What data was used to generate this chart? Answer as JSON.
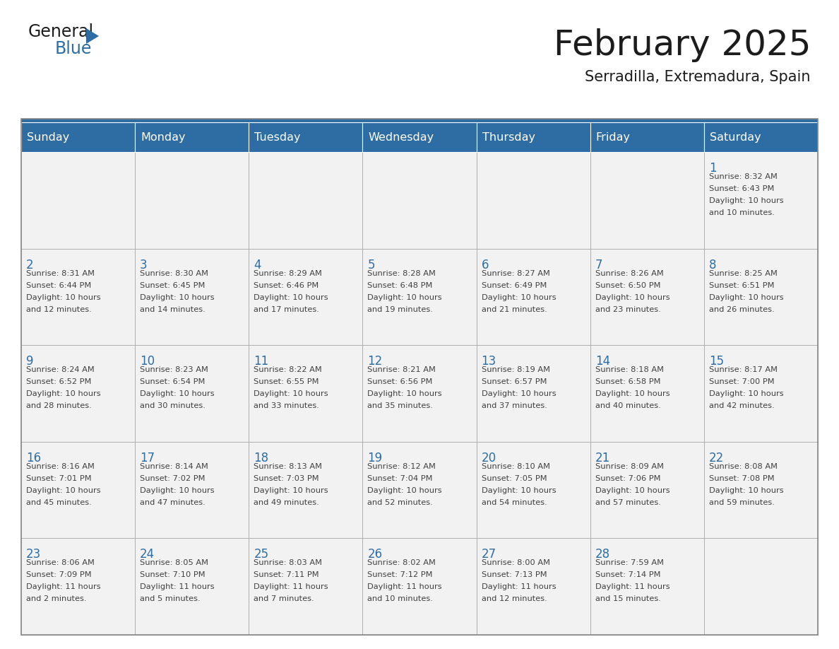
{
  "title": "February 2025",
  "subtitle": "Serradilla, Extremadura, Spain",
  "header_bg": "#2E6DA4",
  "header_text": "#FFFFFF",
  "cell_bg": "#F2F2F2",
  "day_number_color": "#2E6DA4",
  "text_color": "#404040",
  "line_color": "#2E6DA4",
  "days_of_week": [
    "Sunday",
    "Monday",
    "Tuesday",
    "Wednesday",
    "Thursday",
    "Friday",
    "Saturday"
  ],
  "weeks": [
    [
      {
        "day": "",
        "info": ""
      },
      {
        "day": "",
        "info": ""
      },
      {
        "day": "",
        "info": ""
      },
      {
        "day": "",
        "info": ""
      },
      {
        "day": "",
        "info": ""
      },
      {
        "day": "",
        "info": ""
      },
      {
        "day": "1",
        "info": "Sunrise: 8:32 AM\nSunset: 6:43 PM\nDaylight: 10 hours\nand 10 minutes."
      }
    ],
    [
      {
        "day": "2",
        "info": "Sunrise: 8:31 AM\nSunset: 6:44 PM\nDaylight: 10 hours\nand 12 minutes."
      },
      {
        "day": "3",
        "info": "Sunrise: 8:30 AM\nSunset: 6:45 PM\nDaylight: 10 hours\nand 14 minutes."
      },
      {
        "day": "4",
        "info": "Sunrise: 8:29 AM\nSunset: 6:46 PM\nDaylight: 10 hours\nand 17 minutes."
      },
      {
        "day": "5",
        "info": "Sunrise: 8:28 AM\nSunset: 6:48 PM\nDaylight: 10 hours\nand 19 minutes."
      },
      {
        "day": "6",
        "info": "Sunrise: 8:27 AM\nSunset: 6:49 PM\nDaylight: 10 hours\nand 21 minutes."
      },
      {
        "day": "7",
        "info": "Sunrise: 8:26 AM\nSunset: 6:50 PM\nDaylight: 10 hours\nand 23 minutes."
      },
      {
        "day": "8",
        "info": "Sunrise: 8:25 AM\nSunset: 6:51 PM\nDaylight: 10 hours\nand 26 minutes."
      }
    ],
    [
      {
        "day": "9",
        "info": "Sunrise: 8:24 AM\nSunset: 6:52 PM\nDaylight: 10 hours\nand 28 minutes."
      },
      {
        "day": "10",
        "info": "Sunrise: 8:23 AM\nSunset: 6:54 PM\nDaylight: 10 hours\nand 30 minutes."
      },
      {
        "day": "11",
        "info": "Sunrise: 8:22 AM\nSunset: 6:55 PM\nDaylight: 10 hours\nand 33 minutes."
      },
      {
        "day": "12",
        "info": "Sunrise: 8:21 AM\nSunset: 6:56 PM\nDaylight: 10 hours\nand 35 minutes."
      },
      {
        "day": "13",
        "info": "Sunrise: 8:19 AM\nSunset: 6:57 PM\nDaylight: 10 hours\nand 37 minutes."
      },
      {
        "day": "14",
        "info": "Sunrise: 8:18 AM\nSunset: 6:58 PM\nDaylight: 10 hours\nand 40 minutes."
      },
      {
        "day": "15",
        "info": "Sunrise: 8:17 AM\nSunset: 7:00 PM\nDaylight: 10 hours\nand 42 minutes."
      }
    ],
    [
      {
        "day": "16",
        "info": "Sunrise: 8:16 AM\nSunset: 7:01 PM\nDaylight: 10 hours\nand 45 minutes."
      },
      {
        "day": "17",
        "info": "Sunrise: 8:14 AM\nSunset: 7:02 PM\nDaylight: 10 hours\nand 47 minutes."
      },
      {
        "day": "18",
        "info": "Sunrise: 8:13 AM\nSunset: 7:03 PM\nDaylight: 10 hours\nand 49 minutes."
      },
      {
        "day": "19",
        "info": "Sunrise: 8:12 AM\nSunset: 7:04 PM\nDaylight: 10 hours\nand 52 minutes."
      },
      {
        "day": "20",
        "info": "Sunrise: 8:10 AM\nSunset: 7:05 PM\nDaylight: 10 hours\nand 54 minutes."
      },
      {
        "day": "21",
        "info": "Sunrise: 8:09 AM\nSunset: 7:06 PM\nDaylight: 10 hours\nand 57 minutes."
      },
      {
        "day": "22",
        "info": "Sunrise: 8:08 AM\nSunset: 7:08 PM\nDaylight: 10 hours\nand 59 minutes."
      }
    ],
    [
      {
        "day": "23",
        "info": "Sunrise: 8:06 AM\nSunset: 7:09 PM\nDaylight: 11 hours\nand 2 minutes."
      },
      {
        "day": "24",
        "info": "Sunrise: 8:05 AM\nSunset: 7:10 PM\nDaylight: 11 hours\nand 5 minutes."
      },
      {
        "day": "25",
        "info": "Sunrise: 8:03 AM\nSunset: 7:11 PM\nDaylight: 11 hours\nand 7 minutes."
      },
      {
        "day": "26",
        "info": "Sunrise: 8:02 AM\nSunset: 7:12 PM\nDaylight: 11 hours\nand 10 minutes."
      },
      {
        "day": "27",
        "info": "Sunrise: 8:00 AM\nSunset: 7:13 PM\nDaylight: 11 hours\nand 12 minutes."
      },
      {
        "day": "28",
        "info": "Sunrise: 7:59 AM\nSunset: 7:14 PM\nDaylight: 11 hours\nand 15 minutes."
      },
      {
        "day": "",
        "info": ""
      }
    ]
  ]
}
